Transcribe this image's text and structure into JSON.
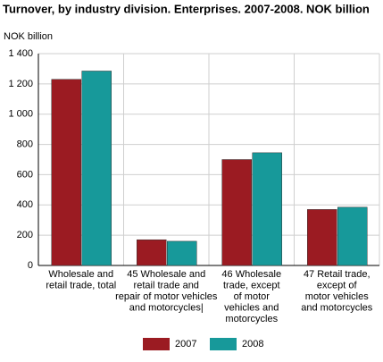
{
  "chart_data": {
    "type": "bar",
    "title": "Turnover, by industry division. Enterprises. 2007-2008. NOK billion",
    "y_label": "NOK billion",
    "categories": [
      [
        "Wholesale and",
        "retail trade, total"
      ],
      [
        "45 Wholesale and",
        "retail trade and",
        "repair of motor vehicles",
        "and motorcycles|"
      ],
      [
        "46 Wholesale",
        "trade, except",
        "of  motor",
        "vehicles and",
        "motorcycles"
      ],
      [
        "47 Retail trade,",
        "except of",
        "motor vehicles",
        "and motorcycles"
      ]
    ],
    "series": [
      {
        "name": "2007",
        "color": "#9b1b22",
        "values": [
          1230,
          170,
          700,
          370
        ]
      },
      {
        "name": "2008",
        "color": "#17999a",
        "values": [
          1285,
          160,
          745,
          385
        ]
      }
    ],
    "ylim": [
      0,
      1400
    ],
    "yticks": [
      0,
      200,
      400,
      600,
      800,
      {
        "value": 1000,
        "label": "1 000"
      },
      {
        "value": 1200,
        "label": "1 200"
      },
      {
        "value": 1400,
        "label": "1 400"
      }
    ],
    "grid": true,
    "legend": "bottom"
  }
}
